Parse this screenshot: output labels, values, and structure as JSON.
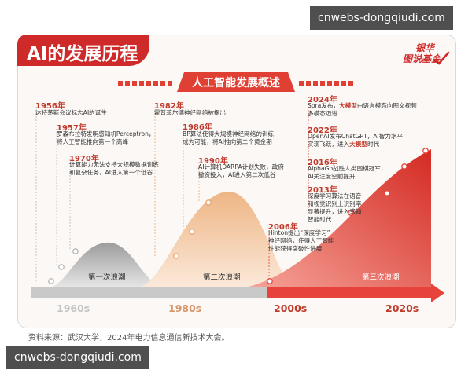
{
  "title": "AI的发展历程",
  "subtitle": "人工智能发展概述",
  "logo": {
    "line1": "银华",
    "line2": "图说基金"
  },
  "waves": [
    "第一次浪潮",
    "第二次浪潮",
    "第三次浪潮"
  ],
  "decades": [
    "1960s",
    "1980s",
    "2000s",
    "2020s"
  ],
  "events": [
    {
      "year": "1956年",
      "desc": "达特茅斯会议标志AI的诞生"
    },
    {
      "year": "1957年",
      "desc": "罗森布拉特发明感知机Perceptron，\n将人工智能推向第一个高峰"
    },
    {
      "year": "1970年",
      "desc": "计算能力无法支持大规模数据训练\n和复杂任务，AI进入第一个低谷"
    },
    {
      "year": "1982年",
      "desc": "霍普菲尔德神经网络被提出"
    },
    {
      "year": "1986年",
      "desc": "BP算法使得大规模神经网络的训练\n成为可能，将AI推向第二个黄金期"
    },
    {
      "year": "1990年",
      "desc": "AI计算机DARPA计划失败，政府\n撤资投入，AI进入第二次低谷"
    },
    {
      "year": "2006年",
      "desc": "Hinton提出“深度学习”\n神经网络，使得人工智能\n性能获得突破性进展"
    },
    {
      "year": "2013年",
      "desc": "深度学习算法在语音\n和视觉识别上识别率\n显著提升，进入感知\n智能时代"
    },
    {
      "year": "2016年",
      "desc": "AlphaGo战胜人类围棋冠军，\nAI关注度空前提升"
    },
    {
      "year": "2022年",
      "desc_pre": "OpenAI发布ChatGPT，AI智力水平\n实现飞跃，进入",
      "desc_em": "大模型",
      "desc_post": "时代"
    },
    {
      "year": "2024年",
      "desc_pre": "Sora发布，",
      "desc_em": "大模型",
      "desc_post": "由语言模态向图文视频\n多模态迈进"
    }
  ],
  "source": "资料来源：武汉大学，2024年电力信息通信新技术大会。",
  "watermark": "cnwebs-dongqiudi.com",
  "colors": {
    "accent": "#cf2a2a",
    "wave1": "#b9b9b9",
    "wave2": "#f0c49e",
    "wave3": "#e8433a",
    "axis": "#c9c9c9"
  }
}
